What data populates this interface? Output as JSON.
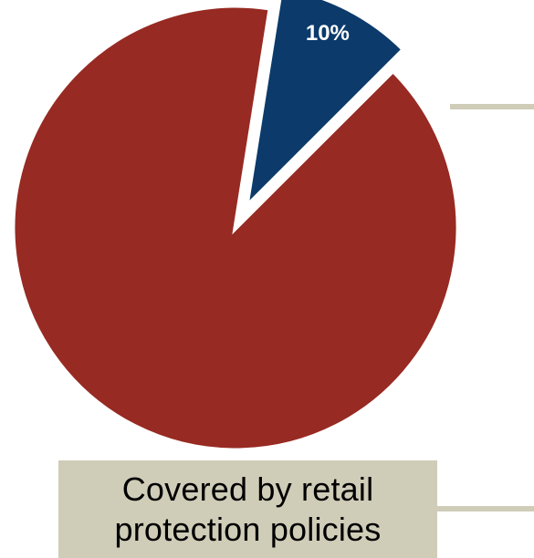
{
  "chart_data": {
    "type": "pie",
    "slices": [
      {
        "label": "",
        "value": 90,
        "color": "#972a22",
        "exploded": false
      },
      {
        "label": "10%",
        "value": 10,
        "color": "#0b3a6b",
        "exploded": true
      }
    ],
    "start_angle_deg": 45,
    "title": ""
  },
  "callouts": {
    "lower": {
      "line1": "Covered by retail",
      "line2": "protection policies"
    }
  },
  "colors": {
    "connector": "#cfccb8",
    "label_text": "#ffffff",
    "slice_separator": "#ffffff"
  }
}
